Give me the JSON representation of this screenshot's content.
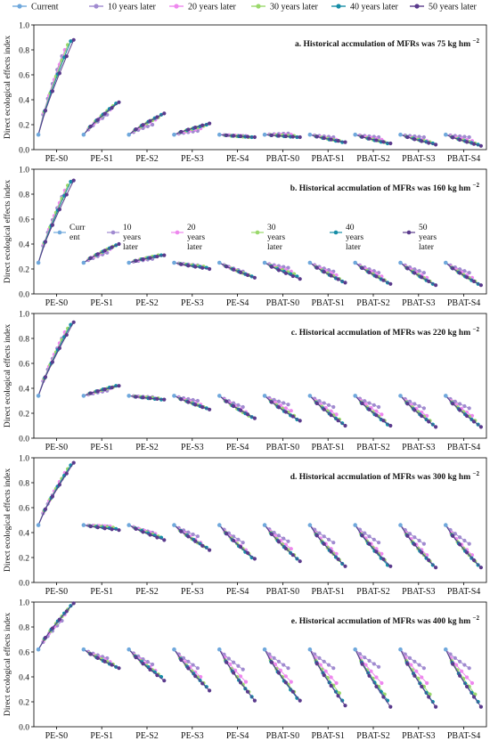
{
  "legend": {
    "items": [
      "Current",
      "10 years later",
      "20 years later",
      "30 years later",
      "40 years later",
      "50 years later"
    ],
    "colors": [
      "#6fa8dc",
      "#a08ad0",
      "#ee88ee",
      "#9ad86b",
      "#168da6",
      "#5a3a8c"
    ]
  },
  "chart_data": [
    {
      "type": "line",
      "title": "a. Historical accmulation of MFRs was 75 kg hm",
      "title_superscript": "−2",
      "ylabel": "Direct ecological effects index",
      "ylim": [
        0,
        1.0
      ],
      "yticks": [
        "0.0",
        "0.2",
        "0.4",
        "0.6",
        "0.8",
        "1.0"
      ],
      "categories": [
        "PE-S0",
        "PE-S1",
        "PE-S2",
        "PE-S3",
        "PE-S4",
        "PBAT-S0",
        "PBAT-S1",
        "PBAT-S2",
        "PBAT-S3",
        "PBAT-S4"
      ],
      "current": [
        0.12,
        0.12,
        0.12,
        0.12,
        0.12,
        0.12,
        0.12,
        0.12,
        0.12,
        0.12
      ],
      "series": [
        {
          "name": "10 years later",
          "values": [
            0.75,
            0.28,
            0.2,
            0.15,
            0.11,
            0.13,
            0.1,
            0.1,
            0.1,
            0.1
          ]
        },
        {
          "name": "20 years later",
          "values": [
            0.8,
            0.32,
            0.24,
            0.17,
            0.11,
            0.12,
            0.08,
            0.08,
            0.07,
            0.07
          ]
        },
        {
          "name": "30 years later",
          "values": [
            0.84,
            0.35,
            0.26,
            0.19,
            0.1,
            0.11,
            0.07,
            0.06,
            0.06,
            0.05
          ]
        },
        {
          "name": "40 years later",
          "values": [
            0.87,
            0.37,
            0.28,
            0.2,
            0.1,
            0.1,
            0.06,
            0.05,
            0.05,
            0.04
          ]
        },
        {
          "name": "50 years later",
          "values": [
            0.88,
            0.38,
            0.29,
            0.21,
            0.1,
            0.1,
            0.06,
            0.05,
            0.04,
            0.03
          ]
        }
      ]
    },
    {
      "type": "line",
      "title": "b. Historical accmulation of MFRs was 160 kg hm",
      "title_superscript": "−2",
      "ylabel": "Direct ecological effects index",
      "ylim": [
        0,
        1.0
      ],
      "yticks": [
        "0.0",
        "0.2",
        "0.4",
        "0.6",
        "0.8",
        "1.0"
      ],
      "inline_legend": [
        "Curr ent",
        "10 years later",
        "20 years later",
        "30 years later",
        "40 years later",
        "50 years later"
      ],
      "categories": [
        "PE-S0",
        "PE-S1",
        "PE-S2",
        "PE-S3",
        "PE-S4",
        "PBAT-S0",
        "PBAT-S1",
        "PBAT-S2",
        "PBAT-S3",
        "PBAT-S4"
      ],
      "current": [
        0.25,
        0.25,
        0.25,
        0.25,
        0.25,
        0.25,
        0.25,
        0.25,
        0.25,
        0.25
      ],
      "series": [
        {
          "name": "10 years later",
          "values": [
            0.78,
            0.33,
            0.28,
            0.23,
            0.18,
            0.21,
            0.18,
            0.17,
            0.17,
            0.17
          ]
        },
        {
          "name": "20 years later",
          "values": [
            0.83,
            0.36,
            0.3,
            0.22,
            0.16,
            0.18,
            0.15,
            0.14,
            0.13,
            0.13
          ]
        },
        {
          "name": "30 years later",
          "values": [
            0.87,
            0.38,
            0.31,
            0.22,
            0.15,
            0.16,
            0.12,
            0.11,
            0.1,
            0.1
          ]
        },
        {
          "name": "40 years later",
          "values": [
            0.9,
            0.39,
            0.31,
            0.21,
            0.14,
            0.14,
            0.1,
            0.09,
            0.08,
            0.08
          ]
        },
        {
          "name": "50 years later",
          "values": [
            0.91,
            0.4,
            0.31,
            0.2,
            0.13,
            0.12,
            0.09,
            0.08,
            0.07,
            0.07
          ]
        }
      ]
    },
    {
      "type": "line",
      "title": "c. Historical accmulation of MFRs was 220 kg hm",
      "title_superscript": "−2",
      "ylabel": "Direct ecological effects index",
      "ylim": [
        0,
        1.0
      ],
      "yticks": [
        "0.0",
        "0.2",
        "0.4",
        "0.6",
        "0.8",
        "1.0"
      ],
      "categories": [
        "PE-S0",
        "PE-S1",
        "PE-S2",
        "PE-S3",
        "PE-S4",
        "PBAT-S0",
        "PBAT-S1",
        "PBAT-S2",
        "PBAT-S3",
        "PBAT-S4"
      ],
      "current": [
        0.34,
        0.34,
        0.34,
        0.34,
        0.34,
        0.34,
        0.34,
        0.34,
        0.34,
        0.34
      ],
      "series": [
        {
          "name": "10 years later",
          "values": [
            0.8,
            0.38,
            0.33,
            0.3,
            0.25,
            0.27,
            0.25,
            0.25,
            0.24,
            0.24
          ]
        },
        {
          "name": "20 years later",
          "values": [
            0.85,
            0.4,
            0.32,
            0.27,
            0.21,
            0.22,
            0.19,
            0.19,
            0.18,
            0.18
          ]
        },
        {
          "name": "30 years later",
          "values": [
            0.88,
            0.41,
            0.32,
            0.25,
            0.18,
            0.18,
            0.15,
            0.14,
            0.14,
            0.14
          ]
        },
        {
          "name": "40 years later",
          "values": [
            0.91,
            0.42,
            0.31,
            0.24,
            0.17,
            0.15,
            0.12,
            0.11,
            0.11,
            0.11
          ]
        },
        {
          "name": "50 years later",
          "values": [
            0.93,
            0.42,
            0.31,
            0.23,
            0.16,
            0.14,
            0.1,
            0.1,
            0.09,
            0.09
          ]
        }
      ]
    },
    {
      "type": "line",
      "title": "d. Historical accmulation of MFRs was 300 kg hm",
      "title_superscript": "−2",
      "ylabel": "Direct ecological effects index",
      "ylim": [
        0,
        1.0
      ],
      "yticks": [
        "0.0",
        "0.2",
        "0.4",
        "0.6",
        "0.8",
        "1.0"
      ],
      "categories": [
        "PE-S0",
        "PE-S1",
        "PE-S2",
        "PE-S3",
        "PE-S4",
        "PBAT-S0",
        "PBAT-S1",
        "PBAT-S2",
        "PBAT-S3",
        "PBAT-S4"
      ],
      "current": [
        0.46,
        0.46,
        0.46,
        0.46,
        0.46,
        0.46,
        0.46,
        0.46,
        0.46,
        0.46
      ],
      "series": [
        {
          "name": "10 years later",
          "values": [
            0.83,
            0.45,
            0.4,
            0.37,
            0.32,
            0.33,
            0.32,
            0.32,
            0.31,
            0.31
          ]
        },
        {
          "name": "20 years later",
          "values": [
            0.88,
            0.45,
            0.39,
            0.32,
            0.26,
            0.27,
            0.23,
            0.23,
            0.22,
            0.22
          ]
        },
        {
          "name": "30 years later",
          "values": [
            0.91,
            0.44,
            0.37,
            0.29,
            0.23,
            0.22,
            0.18,
            0.18,
            0.17,
            0.17
          ]
        },
        {
          "name": "40 years later",
          "values": [
            0.94,
            0.43,
            0.36,
            0.28,
            0.2,
            0.19,
            0.15,
            0.14,
            0.14,
            0.14
          ]
        },
        {
          "name": "50 years later",
          "values": [
            0.96,
            0.42,
            0.34,
            0.26,
            0.19,
            0.17,
            0.13,
            0.13,
            0.12,
            0.12
          ]
        }
      ]
    },
    {
      "type": "line",
      "title": "e. Historical accmulation of MFRs was 400 kg hm",
      "title_superscript": "−2",
      "ylabel": "Direct ecological effects index",
      "ylim": [
        0,
        1.0
      ],
      "yticks": [
        "0.0",
        "0.2",
        "0.4",
        "0.6",
        "0.8",
        "1.0"
      ],
      "categories": [
        "PE-S0",
        "PE-S1",
        "PE-S2",
        "PE-S3",
        "PE-S4",
        "PBAT-S0",
        "PBAT-S1",
        "PBAT-S2",
        "PBAT-S3",
        "PBAT-S4"
      ],
      "current": [
        0.62,
        0.62,
        0.62,
        0.62,
        0.62,
        0.62,
        0.62,
        0.62,
        0.62,
        0.62
      ],
      "series": [
        {
          "name": "10 years later",
          "values": [
            0.85,
            0.55,
            0.5,
            0.47,
            0.46,
            0.47,
            0.47,
            0.48,
            0.47,
            0.47
          ]
        },
        {
          "name": "20 years later",
          "values": [
            0.9,
            0.52,
            0.45,
            0.4,
            0.36,
            0.36,
            0.35,
            0.35,
            0.35,
            0.35
          ]
        },
        {
          "name": "30 years later",
          "values": [
            0.94,
            0.5,
            0.42,
            0.35,
            0.28,
            0.28,
            0.27,
            0.26,
            0.26,
            0.26
          ]
        },
        {
          "name": "40 years later",
          "values": [
            0.97,
            0.48,
            0.4,
            0.32,
            0.24,
            0.23,
            0.21,
            0.21,
            0.2,
            0.2
          ]
        },
        {
          "name": "50 years later",
          "values": [
            0.99,
            0.47,
            0.37,
            0.29,
            0.21,
            0.21,
            0.17,
            0.16,
            0.16,
            0.16
          ]
        }
      ]
    }
  ]
}
